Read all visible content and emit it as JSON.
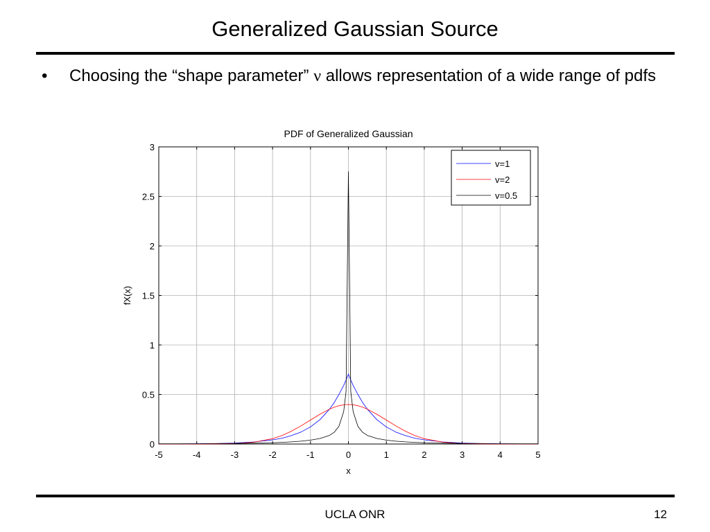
{
  "slide": {
    "title": "Generalized Gaussian Source",
    "bullet": "•",
    "bullet_text_before": "Choosing the “shape parameter” ",
    "bullet_symbol": "ν",
    "bullet_text_after": " allows representation of a wide range of pdfs",
    "footer_center": "UCLA ONR",
    "page_number": "12"
  },
  "chart_data": {
    "type": "line",
    "title": "PDF of Generalized Gaussian",
    "xlabel": "x",
    "ylabel": "fX(x)",
    "xlim": [
      -5,
      5
    ],
    "ylim": [
      0,
      3
    ],
    "x_ticks": [
      -5,
      -4,
      -3,
      -2,
      -1,
      0,
      1,
      2,
      3,
      4,
      5
    ],
    "y_ticks": [
      0,
      0.5,
      1,
      1.5,
      2,
      2.5,
      3
    ],
    "grid": true,
    "legend_position": "top-right",
    "x": [
      -5,
      -4.5,
      -4,
      -3.5,
      -3,
      -2.5,
      -2,
      -1.75,
      -1.5,
      -1.25,
      -1,
      -0.75,
      -0.5,
      -0.375,
      -0.25,
      -0.125,
      -0.0625,
      0,
      0.0625,
      0.125,
      0.25,
      0.375,
      0.5,
      0.75,
      1,
      1.25,
      1.5,
      1.75,
      2,
      2.5,
      3,
      3.5,
      4,
      4.5,
      5
    ],
    "series": [
      {
        "name": "v=1",
        "color": "#0000ff",
        "values": [
          0.001,
          0.001,
          0.003,
          0.005,
          0.01,
          0.021,
          0.042,
          0.059,
          0.085,
          0.121,
          0.173,
          0.246,
          0.351,
          0.419,
          0.5,
          0.592,
          0.646,
          0.707,
          0.646,
          0.592,
          0.5,
          0.419,
          0.351,
          0.246,
          0.173,
          0.121,
          0.085,
          0.059,
          0.042,
          0.021,
          0.01,
          0.005,
          0.003,
          0.001,
          0.001
        ]
      },
      {
        "name": "v=2",
        "color": "#ff0000",
        "values": [
          0.0,
          0.0,
          0.0,
          0.001,
          0.004,
          0.018,
          0.054,
          0.086,
          0.13,
          0.183,
          0.242,
          0.301,
          0.352,
          0.372,
          0.387,
          0.396,
          0.398,
          0.399,
          0.398,
          0.396,
          0.387,
          0.372,
          0.352,
          0.301,
          0.242,
          0.183,
          0.13,
          0.086,
          0.054,
          0.018,
          0.004,
          0.001,
          0.0,
          0.0,
          0.0
        ]
      },
      {
        "name": "v=0.5",
        "color": "#000000",
        "values": [
          0.002,
          0.002,
          0.003,
          0.004,
          0.006,
          0.009,
          0.013,
          0.017,
          0.022,
          0.029,
          0.039,
          0.056,
          0.087,
          0.118,
          0.178,
          0.328,
          0.53,
          2.75,
          0.53,
          0.328,
          0.178,
          0.118,
          0.087,
          0.056,
          0.039,
          0.029,
          0.022,
          0.017,
          0.013,
          0.009,
          0.006,
          0.004,
          0.003,
          0.002,
          0.002
        ]
      }
    ]
  }
}
